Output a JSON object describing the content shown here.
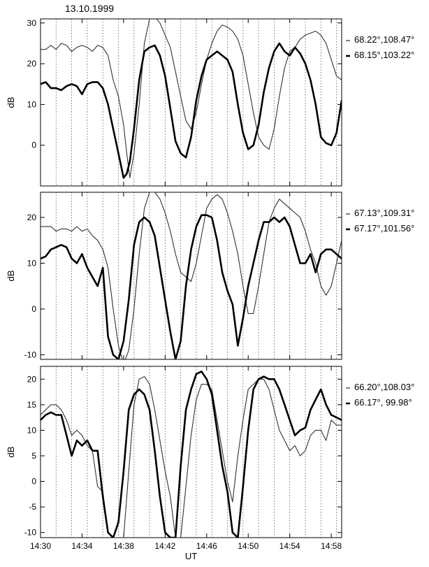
{
  "date_label": "13.10.1999",
  "chart_data": [
    {
      "type": "line",
      "ylabel": "dB",
      "xlabel": "",
      "ylim": [
        -10,
        31
      ],
      "yticks": [
        0,
        10,
        20,
        30
      ],
      "xlim": [
        870,
        899
      ],
      "xticks": [
        870,
        874,
        878,
        882,
        886,
        890,
        894,
        898
      ],
      "xtick_labels": [
        "",
        "",
        "",
        "",
        "",
        "",
        "",
        ""
      ],
      "grid": "vertical dotted, every 1.5 min",
      "legend_position": "right",
      "series": [
        {
          "name": "68.22°,108.47°",
          "weight": "thin",
          "x": [
            870,
            870.5,
            871,
            871.5,
            872,
            872.5,
            873,
            873.5,
            874,
            874.5,
            875,
            875.5,
            876,
            876.5,
            877,
            877.5,
            878,
            878.3,
            878.6,
            879,
            879.5,
            880,
            880.5,
            881,
            881.5,
            882,
            882.5,
            883,
            883.5,
            884,
            884.5,
            885,
            885.5,
            886,
            886.5,
            887,
            887.5,
            888,
            888.5,
            889,
            889.5,
            890,
            890.5,
            891,
            891.5,
            892,
            892.5,
            893,
            893.5,
            894,
            894.5,
            895,
            895.5,
            896,
            896.5,
            897,
            897.5,
            898,
            898.5,
            899
          ],
          "y": [
            23.5,
            23.5,
            24.5,
            23.5,
            25,
            24.5,
            23,
            24,
            24.5,
            24,
            23,
            24.5,
            24,
            22,
            16,
            12,
            5,
            -2,
            -8,
            -2,
            10,
            25,
            31,
            31.5,
            30,
            27,
            24,
            18,
            12,
            6,
            4,
            8,
            15,
            21,
            25,
            28,
            29.5,
            29,
            28,
            26,
            22,
            15,
            8,
            2,
            0,
            -1,
            4,
            12,
            19,
            23,
            24,
            26,
            27,
            27.5,
            28,
            27,
            25,
            21,
            17,
            16
          ]
        },
        {
          "name": "68.15°,103.22°",
          "weight": "thick",
          "x": [
            870,
            870.5,
            871,
            871.5,
            872,
            872.5,
            873,
            873.5,
            874,
            874.5,
            875,
            875.5,
            876,
            876.5,
            877,
            877.5,
            878,
            878.3,
            878.6,
            879,
            879.5,
            880,
            880.5,
            881,
            881.5,
            882,
            882.5,
            883,
            883.5,
            884,
            884.5,
            885,
            885.5,
            886,
            886.5,
            887,
            887.5,
            888,
            888.5,
            889,
            889.5,
            890,
            890.5,
            891,
            891.5,
            892,
            892.5,
            893,
            893.5,
            894,
            894.5,
            895,
            895.5,
            896,
            896.5,
            897,
            897.5,
            898,
            898.5,
            899
          ],
          "y": [
            15,
            15.5,
            14,
            14,
            13.5,
            14.5,
            15,
            14.5,
            12.5,
            15,
            15.5,
            15.5,
            14,
            10,
            4,
            -2,
            -8,
            -7,
            -4,
            4,
            16,
            23,
            24,
            24.5,
            22,
            17,
            9,
            1,
            -2,
            -3,
            2,
            11,
            17,
            21,
            22,
            23,
            22,
            21,
            18,
            10,
            3,
            -1,
            0,
            5,
            13,
            19,
            23,
            25,
            23,
            22,
            24,
            22.5,
            20,
            16,
            10,
            2,
            0.5,
            0,
            3,
            11
          ]
        }
      ]
    },
    {
      "type": "line",
      "ylabel": "dB",
      "xlabel": "",
      "ylim": [
        -11,
        25.5
      ],
      "yticks": [
        -10,
        0,
        10,
        20
      ],
      "xlim": [
        870,
        899
      ],
      "xticks": [
        870,
        874,
        878,
        882,
        886,
        890,
        894,
        898
      ],
      "xtick_labels": [
        "",
        "",
        "",
        "",
        "",
        "",
        "",
        ""
      ],
      "grid": "vertical dotted, every 1.5 min",
      "legend_position": "right",
      "series": [
        {
          "name": "67.13°,109.31°",
          "weight": "thin",
          "x": [
            870,
            870.5,
            871,
            871.5,
            872,
            872.5,
            873,
            873.5,
            874,
            874.5,
            875,
            875.5,
            876,
            876.5,
            877,
            877.5,
            878,
            878.5,
            879,
            879.5,
            880,
            880.5,
            881,
            881.5,
            882,
            882.5,
            883,
            883.5,
            884,
            884.5,
            885,
            885.5,
            886,
            886.5,
            887,
            887.5,
            888,
            888.5,
            889,
            889.5,
            890,
            890.5,
            891,
            891.5,
            892,
            892.5,
            893,
            893.5,
            894,
            894.5,
            895,
            895.5,
            896,
            896.5,
            897,
            897.5,
            898,
            898.5,
            899
          ],
          "y": [
            18,
            18,
            18,
            17,
            17.5,
            17.5,
            17,
            18,
            17,
            17.5,
            16,
            15,
            13,
            9,
            0,
            -8,
            -12,
            -9,
            0,
            12,
            22,
            25.5,
            25.5,
            24,
            21,
            17,
            12,
            8,
            7,
            6,
            10,
            16,
            22,
            24,
            25,
            24,
            21,
            17,
            12,
            5,
            -1,
            -1,
            5,
            12,
            19,
            22,
            24,
            23,
            22,
            21,
            20,
            17,
            13,
            10,
            5,
            3,
            5,
            10,
            15
          ]
        },
        {
          "name": "67.17°,101.56°",
          "weight": "thick",
          "x": [
            870,
            870.5,
            871,
            871.5,
            872,
            872.5,
            873,
            873.5,
            874,
            874.5,
            875,
            875.5,
            876,
            876.5,
            877,
            877.5,
            878,
            878.5,
            879,
            879.5,
            880,
            880.5,
            881,
            881.5,
            882,
            882.5,
            883,
            883.5,
            884,
            884.5,
            885,
            885.5,
            886,
            886.5,
            887,
            887.5,
            888,
            888.5,
            889,
            889.5,
            890,
            890.5,
            891,
            891.5,
            892,
            892.5,
            893,
            893.5,
            894,
            894.5,
            895,
            895.5,
            896,
            896.5,
            897,
            897.5,
            898,
            898.5,
            899
          ],
          "y": [
            11,
            11.5,
            13,
            13.5,
            14,
            13.5,
            11,
            10,
            12,
            9,
            7,
            5,
            9,
            -6,
            -10,
            -11,
            -7,
            2,
            14,
            19,
            20,
            19,
            16,
            9,
            2,
            -5,
            -11,
            -7,
            5,
            13,
            18,
            20.5,
            20.5,
            20,
            15,
            8,
            4,
            1,
            -8,
            -2,
            5,
            10,
            15,
            19,
            19,
            20,
            19,
            20,
            18,
            14,
            10,
            10,
            12,
            8,
            12,
            13,
            13,
            12,
            11
          ]
        }
      ]
    },
    {
      "type": "line",
      "ylabel": "dB",
      "xlabel": "UT",
      "ylim": [
        -11,
        22.5
      ],
      "yticks": [
        -10,
        -5,
        0,
        5,
        10,
        15,
        20
      ],
      "xlim": [
        870,
        899
      ],
      "xticks": [
        870,
        874,
        878,
        882,
        886,
        890,
        894,
        898
      ],
      "xtick_labels": [
        "14:30",
        "14:34",
        "14:38",
        "14:42",
        "14:46",
        "14:50",
        "14:54",
        "14:58"
      ],
      "grid": "vertical dotted, every 1.5 min",
      "legend_position": "right",
      "series": [
        {
          "name": "66.20°,108.03°",
          "weight": "thin",
          "x": [
            870,
            870.5,
            871,
            871.5,
            872,
            872.5,
            873,
            873.5,
            874,
            874.5,
            875,
            875.5,
            876,
            876.5,
            877,
            877.5,
            878,
            878.5,
            879,
            879.5,
            880,
            880.5,
            881,
            881.5,
            882,
            882.5,
            883,
            883.5,
            884,
            884.5,
            885,
            885.5,
            886,
            886.5,
            887,
            887.5,
            888,
            888.5,
            889,
            889.5,
            890,
            890.5,
            891,
            891.5,
            892,
            892.5,
            893,
            893.5,
            894,
            894.5,
            895,
            895.5,
            896,
            896.5,
            897,
            897.5,
            898,
            898.5,
            899
          ],
          "y": [
            13,
            14,
            15,
            15,
            14,
            12,
            9,
            10,
            9,
            7,
            6,
            -1,
            -2,
            -10,
            -11,
            -11,
            -11,
            2,
            15,
            20,
            20.5,
            19,
            14,
            8,
            2,
            -3,
            -11,
            -11,
            -1,
            9,
            16,
            19,
            19,
            18,
            12,
            6,
            0,
            -4,
            5,
            12,
            18,
            19,
            20,
            20,
            18,
            14,
            10,
            8,
            6,
            7,
            5,
            6,
            9,
            10,
            10,
            8,
            12,
            11,
            11
          ]
        },
        {
          "name": "66.17°, 99.98°",
          "weight": "thick",
          "x": [
            870,
            870.5,
            871,
            871.5,
            872,
            872.5,
            873,
            873.5,
            874,
            874.5,
            875,
            875.5,
            876,
            876.5,
            877,
            877.5,
            878,
            878.5,
            879,
            879.5,
            880,
            880.5,
            881,
            881.5,
            882,
            882.5,
            883,
            883.5,
            884,
            884.5,
            885,
            885.5,
            886,
            886.5,
            887,
            887.5,
            888,
            888.5,
            889,
            889.5,
            890,
            890.5,
            891,
            891.5,
            892,
            892.5,
            893,
            893.5,
            894,
            894.5,
            895,
            895.5,
            896,
            896.5,
            897,
            897.5,
            898,
            898.5,
            899
          ],
          "y": [
            12,
            13,
            13.5,
            13,
            13,
            9,
            5,
            8,
            7,
            8,
            6,
            6,
            -3,
            -10,
            -11,
            -8,
            2,
            14,
            17,
            18,
            17,
            14,
            6,
            -3,
            -10,
            -11,
            -11,
            3,
            14,
            18,
            21,
            21.5,
            20,
            17,
            10,
            3,
            -2,
            -10,
            -11,
            -1,
            10,
            18,
            20,
            20.5,
            20,
            20,
            18,
            15,
            12,
            9,
            10,
            10.5,
            14,
            16,
            18,
            15,
            13,
            12.5,
            12
          ]
        }
      ]
    }
  ]
}
